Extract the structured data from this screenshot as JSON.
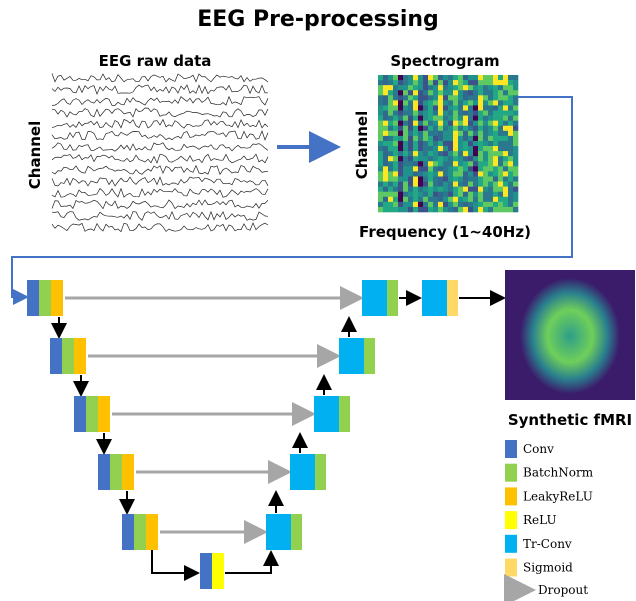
{
  "title": "EEG Pre-processing",
  "eeg_raw": {
    "title": "EEG raw data",
    "y_label": "Channel"
  },
  "spectrogram": {
    "title": "Spectrogram",
    "y_label": "Channel",
    "x_label": "Frequency (1~40Hz)"
  },
  "network": {
    "output_label": "Synthetic fMRI"
  },
  "legend": {
    "items": [
      "Conv",
      "BatchNorm",
      "LeakyReLU",
      "ReLU",
      "Tr-Conv",
      "Sigmoid"
    ],
    "dropout": "Dropout"
  }
}
